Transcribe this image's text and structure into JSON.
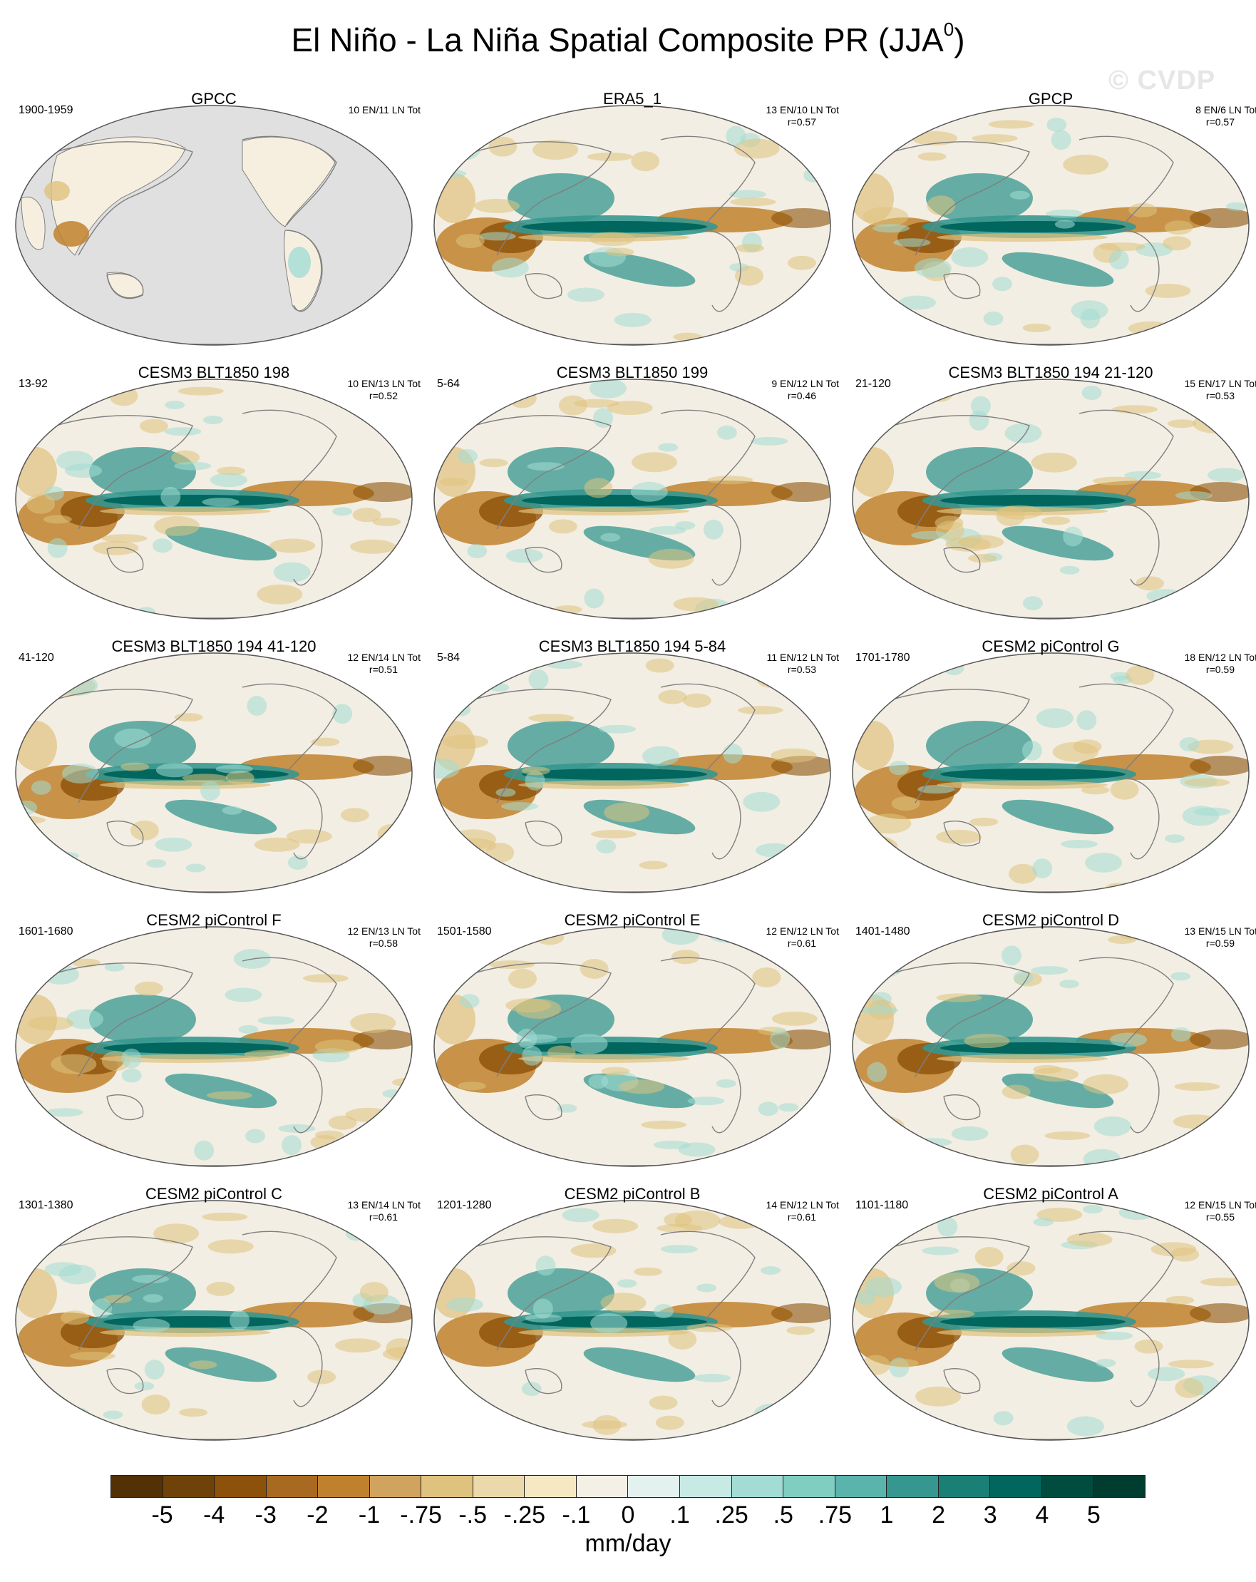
{
  "title": {
    "main": "El Niño - La Niña Spatial Composite PR (JJA",
    "superscript": "0",
    "close": ")"
  },
  "watermark": "© CVDP",
  "panels": [
    {
      "title": "GPCC",
      "years": "1900-1959",
      "counts": "10 EN/11 LN Tot",
      "r": "",
      "land_only": true
    },
    {
      "title": "ERA5_1",
      "years": "",
      "counts": "13 EN/10 LN Tot",
      "r": "r=0.57",
      "land_only": false
    },
    {
      "title": "GPCP",
      "years": "",
      "counts": "8 EN/6 LN Tot",
      "r": "r=0.57",
      "land_only": false
    },
    {
      "title": "CESM3 BLT1850 198",
      "years": "13-92",
      "counts": "10 EN/13 LN Tot",
      "r": "r=0.52",
      "land_only": false
    },
    {
      "title": "CESM3 BLT1850 199",
      "years": "5-64",
      "counts": "9 EN/12 LN Tot",
      "r": "r=0.46",
      "land_only": false
    },
    {
      "title": "CESM3 BLT1850 194 21-120",
      "years": "21-120",
      "counts": "15 EN/17 LN Tot",
      "r": "r=0.53",
      "land_only": false
    },
    {
      "title": "CESM3 BLT1850 194 41-120",
      "years": "41-120",
      "counts": "12 EN/14 LN Tot",
      "r": "r=0.51",
      "land_only": false
    },
    {
      "title": "CESM3 BLT1850 194 5-84",
      "years": "5-84",
      "counts": "11 EN/12 LN Tot",
      "r": "r=0.53",
      "land_only": false
    },
    {
      "title": "CESM2 piControl G",
      "years": "1701-1780",
      "counts": "18 EN/12 LN Tot",
      "r": "r=0.59",
      "land_only": false
    },
    {
      "title": "CESM2 piControl F",
      "years": "1601-1680",
      "counts": "12 EN/13 LN Tot",
      "r": "r=0.58",
      "land_only": false
    },
    {
      "title": "CESM2 piControl E",
      "years": "1501-1580",
      "counts": "12 EN/12 LN Tot",
      "r": "r=0.61",
      "land_only": false
    },
    {
      "title": "CESM2 piControl D",
      "years": "1401-1480",
      "counts": "13 EN/15 LN Tot",
      "r": "r=0.59",
      "land_only": false
    },
    {
      "title": "CESM2 piControl C",
      "years": "1301-1380",
      "counts": "13 EN/14 LN Tot",
      "r": "r=0.61",
      "land_only": false
    },
    {
      "title": "CESM2 piControl B",
      "years": "1201-1280",
      "counts": "14 EN/12 LN Tot",
      "r": "r=0.61",
      "land_only": false
    },
    {
      "title": "CESM2 piControl A",
      "years": "1101-1180",
      "counts": "12 EN/15 LN Tot",
      "r": "r=0.55",
      "land_only": false
    }
  ],
  "colorbar": {
    "colors": [
      "#543005",
      "#6e4209",
      "#8c510a",
      "#a86a20",
      "#bf812d",
      "#d0a45e",
      "#dfc27d",
      "#ecd9ab",
      "#f6e8c3",
      "#f5f0e6",
      "#e3f2ee",
      "#c7eae5",
      "#a2dcd4",
      "#80cdc1",
      "#5ab4ac",
      "#35978f",
      "#1a7f75",
      "#01665e",
      "#004d40",
      "#003c30"
    ],
    "labels": [
      "-5",
      "-4",
      "-3",
      "-2",
      "-1",
      "-.75",
      "-.5",
      "-.25",
      "-.1",
      "0",
      ".1",
      ".25",
      ".5",
      ".75",
      "1",
      "2",
      "3",
      "4",
      "5"
    ],
    "units": "mm/day"
  },
  "map_colors": {
    "ocean_background": "#f3eee3",
    "missing": "#e0e0e0",
    "coastline": "#7f7f7f",
    "brown_strong": "#8c510a",
    "brown_medium": "#bf812d",
    "brown_light": "#dfc27d",
    "green_strong": "#01665e",
    "green_medium": "#35978f",
    "green_light": "#a2dcd4"
  }
}
